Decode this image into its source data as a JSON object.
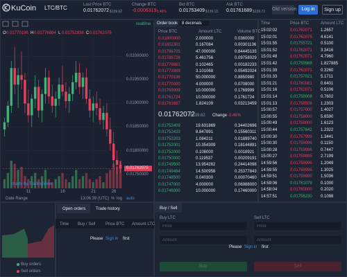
{
  "header": {
    "logo": "KuCoin",
    "pair": "LTC/BTC",
    "stats": [
      {
        "label": "Last Price BTC",
        "value": "0.01762072",
        "usd": "$139.62"
      },
      {
        "label": "Change BTC",
        "value": "-0.0006319",
        "usd": "-3.46%"
      },
      {
        "label": "Bid BTC",
        "value": "0.01753409",
        "usd": "$139.13"
      },
      {
        "label": "Ask BTC",
        "value": "0.01761689",
        "usd": "$139.72"
      }
    ],
    "buttons": [
      "Old version",
      "Log in",
      "Sign up"
    ]
  },
  "chart": {
    "realtime": "realtime",
    "ohlc": [
      {
        "label": "O",
        "value": "0.01770196"
      },
      {
        "label": "H",
        "value": "0.01776884"
      },
      {
        "label": "L",
        "value": "0.01752838"
      },
      {
        "label": "C",
        "value": "0.01762075"
      }
    ],
    "candles": [
      [
        0.01845,
        0.0187,
        0.0183,
        0.0186
      ],
      [
        0.0186,
        0.01905,
        0.0185,
        0.01895
      ],
      [
        0.01895,
        0.0199,
        0.0188,
        0.01975
      ],
      [
        0.01975,
        0.0202,
        0.0192,
        0.0194
      ],
      [
        0.0194,
        0.01975,
        0.0189,
        0.0196
      ],
      [
        0.0196,
        0.0201,
        0.0193,
        0.0195
      ],
      [
        0.0195,
        0.01965,
        0.0188,
        0.019
      ],
      [
        0.019,
        0.0193,
        0.0186,
        0.01875
      ],
      [
        0.01875,
        0.0192,
        0.0185,
        0.0191
      ],
      [
        0.0191,
        0.0196,
        0.0189,
        0.01935
      ],
      [
        0.01935,
        0.0195,
        0.0187,
        0.01885
      ],
      [
        0.01885,
        0.0193,
        0.0186,
        0.0192
      ],
      [
        0.0192,
        0.01975,
        0.019,
        0.01955
      ],
      [
        0.01955,
        0.0197,
        0.019,
        0.01915
      ],
      [
        0.01915,
        0.0194,
        0.0188,
        0.01895
      ],
      [
        0.01895,
        0.01925,
        0.0187,
        0.0191
      ],
      [
        0.0191,
        0.01955,
        0.01895,
        0.0194
      ],
      [
        0.0194,
        0.0198,
        0.01915,
        0.01925
      ],
      [
        0.01925,
        0.01945,
        0.0189,
        0.01905
      ],
      [
        0.01905,
        0.01935,
        0.0188,
        0.0192
      ],
      [
        0.0192,
        0.0196,
        0.01905,
        0.01945
      ],
      [
        0.01945,
        0.0199,
        0.0193,
        0.01965
      ],
      [
        0.01965,
        0.01985,
        0.0192,
        0.01935
      ],
      [
        0.01935,
        0.01965,
        0.0191,
        0.01955
      ],
      [
        0.01955,
        0.01975,
        0.019,
        0.0191
      ],
      [
        0.0191,
        0.0193,
        0.0187,
        0.01885
      ],
      [
        0.01885,
        0.01915,
        0.0186,
        0.019
      ],
      [
        0.019,
        0.01925,
        0.01875,
        0.0189
      ],
      [
        0.0189,
        0.0191,
        0.01855,
        0.01865
      ],
      [
        0.01865,
        0.01895,
        0.01845,
        0.0188
      ],
      [
        0.0188,
        0.019,
        0.0183,
        0.01845
      ],
      [
        0.01845,
        0.0187,
        0.018,
        0.01815
      ],
      [
        0.01815,
        0.0184,
        0.01765,
        0.0178
      ],
      [
        0.0178,
        0.018,
        0.0175,
        0.0177
      ],
      [
        0.0177,
        0.01777,
        0.01753,
        0.01762
      ]
    ],
    "volumes": [
      3,
      5,
      9,
      8,
      6,
      7,
      4,
      3,
      4,
      5,
      3,
      4,
      6,
      3,
      2,
      3,
      4,
      5,
      3,
      2,
      4,
      6,
      3,
      4,
      5,
      3,
      2,
      3,
      4,
      2,
      5,
      6,
      8,
      7,
      9
    ],
    "ylim": [
      0.0172,
      0.0204
    ],
    "yticks": [
      {
        "value": 0.0175,
        "label": "0.01750000"
      },
      {
        "value": 0.018,
        "label": "0.01800000"
      },
      {
        "value": 0.0185,
        "label": "0.01850000"
      },
      {
        "value": 0.019,
        "label": "0.01900000"
      },
      {
        "value": 0.0195,
        "label": "0.01950000"
      },
      {
        "value": 0.02,
        "label": "0.02000000"
      }
    ],
    "xticks": [
      {
        "value": 7,
        "label": "11"
      },
      {
        "value": 17,
        "label": "16"
      },
      {
        "value": 26,
        "label": "21"
      },
      {
        "value": 32,
        "label": "26"
      }
    ],
    "price_tag": 0.01762075,
    "watermark": "charts by TradingView",
    "footer": {
      "range": "Date Range",
      "time": "13:06:39 (UTC)",
      "options": [
        "%",
        "log",
        "auto"
      ]
    }
  },
  "order_book": {
    "title": "Order book",
    "decimals": "8 decimals",
    "columns": [
      "Price BTC",
      "Amount LTC",
      "Volume BTC"
    ],
    "asks": [
      [
        "0.01800000",
        "2.000000",
        "0.0360000"
      ],
      [
        "0.01802301",
        "0.167084",
        "0.00301136"
      ],
      [
        "0.01796705",
        "47.000000",
        "0.84445135"
      ],
      [
        "0.01786726",
        "5.461756",
        "0.09758029"
      ],
      [
        "0.01779861",
        "0.102465",
        "0.00182233"
      ],
      [
        "0.01773969",
        "3.101068",
        "0.05492024"
      ],
      [
        "0.01770196",
        "50.000000",
        "0.8850980"
      ],
      [
        "0.01770000",
        "4.000000",
        "0.0708000"
      ],
      [
        "0.01769999",
        "10.000000",
        "0.1769999"
      ],
      [
        "0.01761724",
        "10.000000",
        "0.1761724"
      ],
      [
        "0.01761687",
        "1.824109",
        "0.03213459"
      ]
    ],
    "last_price": "0.01762072",
    "last_usd": "$139.62",
    "change_label": "Change",
    "change": "-3.46%",
    "bids": [
      [
        "0.01752409",
        "19.631869",
        "0.34402696"
      ],
      [
        "0.01752433",
        "8.847891",
        "0.15560311"
      ],
      [
        "0.01752203",
        "1.084211",
        "0.01899740"
      ],
      [
        "0.01752001",
        "10.354309",
        "0.18144891"
      ],
      [
        "0.01752000",
        "0.108000",
        "0.0018921"
      ],
      [
        "0.01750000",
        "0.119537",
        "0.00209191"
      ],
      [
        "0.01749500",
        "13.954262",
        "0.24414098"
      ],
      [
        "0.01749484",
        "14.500958",
        "0.25377843"
      ],
      [
        "0.01748500",
        "0.040300",
        "0.00070460"
      ],
      [
        "0.01747000",
        "4.000000",
        "0.06988000"
      ],
      [
        "0.01746000",
        "10.000000",
        "0.17460000"
      ]
    ]
  },
  "trades": {
    "columns": [
      "Time",
      "Price BTC",
      "Amount LTC"
    ],
    "rows": [
      [
        "15:02:02",
        "0.01762071",
        "1.2657",
        "#e0435e"
      ],
      [
        "15:02:01",
        "0.01762075",
        "4.6141",
        "#e0435e"
      ],
      [
        "15:01:55",
        "0.01755721",
        "0.5100",
        "#3db37a"
      ],
      [
        "15:01:52",
        "0.01762071",
        "3.3416",
        "#e0435e"
      ],
      [
        "15:01:48",
        "0.01762071",
        "4.7960",
        "#e0435e"
      ],
      [
        "15:01:42",
        "0.01759988",
        "1.827885",
        "#3db37a"
      ],
      [
        "15:01:39",
        "0.01762071",
        "0.3260",
        "#e0435e"
      ],
      [
        "15:01:33",
        "0.01757021",
        "5.1711",
        "#3db37a"
      ],
      [
        "15:01:21",
        "0.01760081",
        "0.6401",
        "#e0435e"
      ],
      [
        "15:01:16",
        "0.01762071",
        "0.5106",
        "#e0435e"
      ],
      [
        "15:01:14",
        "0.01758008",
        "0.7602",
        "#3db37a"
      ],
      [
        "15:01:13",
        "0.01758508",
        "1.2303",
        "#e0435e"
      ],
      [
        "15:00:57",
        "0.01757000",
        "1.4027",
        "#e0435e"
      ],
      [
        "15:00:55",
        "0.01758000",
        "5.6590",
        "#e0435e"
      ],
      [
        "15:00:49",
        "0.01758000",
        "1.6123",
        "#e0435e"
      ],
      [
        "15:00:44",
        "0.01757642",
        "1.2322",
        "#3db37a"
      ],
      [
        "15:00:30",
        "0.01757999",
        "1.3441",
        "#e0435e"
      ],
      [
        "15:00:30",
        "0.01759996",
        "0.1150",
        "#e0435e"
      ],
      [
        "15:00:28",
        "0.01759996",
        "0.7447",
        "#e0435e"
      ],
      [
        "15:00:27",
        "0.01759995",
        "2.7199",
        "#e0435e"
      ],
      [
        "14:59:56",
        "0.01759996",
        "1.2049",
        "#e0435e"
      ],
      [
        "14:59:55",
        "0.01759996",
        "1.3025",
        "#e0435e"
      ],
      [
        "14:59:51",
        "0.01759900",
        "1.5036",
        "#e0435e"
      ],
      [
        "14:59:06",
        "0.01761079",
        "0.1000",
        "#3db37a"
      ],
      [
        "14:58:04",
        "0.01760000",
        "0.2020",
        "#e0435e"
      ],
      [
        "14:57:51",
        "0.01756230",
        "0.1098",
        "#3db37a"
      ]
    ]
  },
  "depth": {
    "legend": [
      "Buy orders",
      "Sell orders"
    ]
  },
  "orders": {
    "tabs": [
      "Open orders",
      "Trade history"
    ],
    "columns": [
      "Time",
      "Buy / Sell",
      "Price BTC",
      "Amount LTC"
    ],
    "prompt": {
      "before": "Please",
      "link": "Sign in",
      "after": "first"
    }
  },
  "trade_form": {
    "tab": "Buy / Sell",
    "buy": {
      "title": "Buy LTC",
      "fields": [
        "Price",
        "Amount"
      ],
      "button": "Buy"
    },
    "sell": {
      "title": "Sell LTC",
      "fields": [
        "Price",
        "Amount"
      ],
      "button": "Sell"
    },
    "prompt": {
      "before": "Please",
      "link": "Sign in",
      "after": "first"
    }
  }
}
